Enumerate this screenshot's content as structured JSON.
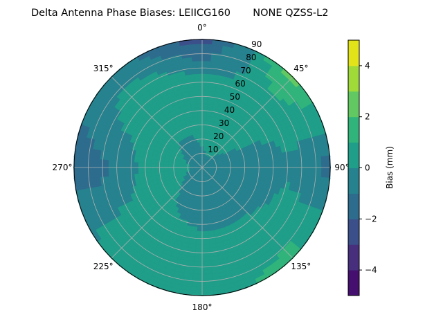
{
  "chart_data": {
    "type": "polar-contour",
    "title": "Delta Antenna Phase Biases: LEIICG160       NONE QZSS-L2",
    "angular_tick_labels": [
      "0°",
      "45°",
      "90°",
      "135°",
      "180°",
      "225°",
      "270°",
      "315°"
    ],
    "radial_tick_labels": [
      "10",
      "20",
      "30",
      "40",
      "50",
      "60",
      "70",
      "80",
      "90"
    ],
    "radial_range": [
      0,
      90
    ],
    "angular_direction": "clockwise",
    "angular_zero": "north",
    "grid": true,
    "colorbar": {
      "label": "Bias (mm)",
      "levels": [
        -5,
        -4,
        -3,
        -2,
        -1,
        0,
        1,
        2,
        3,
        4,
        5
      ],
      "tick_labels": [
        "−4",
        "−2",
        "0",
        "2",
        "4"
      ],
      "ticks": [
        -4,
        -2,
        0,
        2,
        4
      ],
      "colormap": "viridis",
      "colors": [
        "#440f6e",
        "#472f7d",
        "#3b508a",
        "#2e6c8e",
        "#26828e",
        "#1f9e89",
        "#30b47b",
        "#62c962",
        "#a0da39",
        "#e2e419"
      ]
    },
    "grid_values": {
      "azimuth_deg": [
        0,
        45,
        90,
        135,
        180,
        225,
        270,
        315
      ],
      "zenith_deg": [
        0,
        30,
        60,
        90
      ],
      "bias_mm": [
        [
          -0.5,
          0.5,
          0.5,
          -2.5
        ],
        [
          -0.5,
          0.5,
          0.5,
          2.5
        ],
        [
          -0.5,
          -0.5,
          -0.5,
          -1.5
        ],
        [
          -0.5,
          -0.5,
          0.5,
          1.5
        ],
        [
          -0.5,
          -0.5,
          0.5,
          0.5
        ],
        [
          -0.5,
          0.5,
          0.5,
          0.5
        ],
        [
          -0.5,
          0.5,
          -0.5,
          -1.5
        ],
        [
          -0.5,
          0.5,
          0.5,
          -0.5
        ]
      ]
    }
  }
}
